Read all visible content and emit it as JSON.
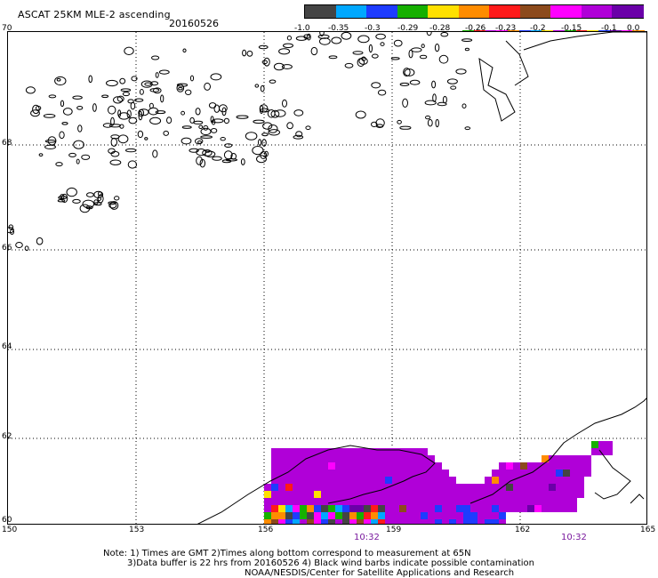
{
  "header": {
    "title": "ASCAT 25KM MLE-2 ascending",
    "date": "20160526"
  },
  "colorbar": {
    "labels": [
      "-1.0",
      "-0.35",
      "-0.3",
      "-0.29",
      "-0.28",
      "-0.26",
      "-0.23",
      "-0.2",
      "-0.15",
      "-0.1",
      "0.0"
    ],
    "colors": [
      "#444444",
      "#00a8ff",
      "#1e3cff",
      "#16b000",
      "#ffe000",
      "#ff8c00",
      "#ff1a1a",
      "#8c4a1c",
      "#ff00ff",
      "#b000d8",
      "#6a00a8"
    ],
    "small_segment_colors": [
      "#16b000",
      "#ff1a1a",
      "#b000d8",
      "#ff00ff",
      "#ff8c00",
      "#1e3cff",
      "#00a8ff",
      "#ffe000",
      "#b000d8",
      "#16b000",
      "#ff1a1a",
      "#ffe000",
      "#1e3cff",
      "#6a00a8",
      "#ff00ff",
      "#ff8c00"
    ]
  },
  "map": {
    "lat_labels": [
      "70",
      "68",
      "66",
      "64",
      "62",
      "60"
    ],
    "lon_labels": [
      "150",
      "153",
      "156",
      "159",
      "162",
      "165"
    ],
    "lat_range": [
      60,
      70
    ],
    "lon_range": [
      150,
      165
    ],
    "time_labels": [
      "10:32",
      "10:32"
    ],
    "background_color": "#ffffff",
    "coast_color": "#000000",
    "primary_swath_color": "#b000d8"
  },
  "footer": {
    "line1": "Note: 1) Times are GMT 2)Times along bottom correspond to measurement at 65N",
    "line2": "3)Data buffer is 22 hrs from 20160526 4) Black wind barbs indicate possible contamination",
    "line3": "NOAA/NESDIS/Center for Satellite Applications and Research"
  }
}
